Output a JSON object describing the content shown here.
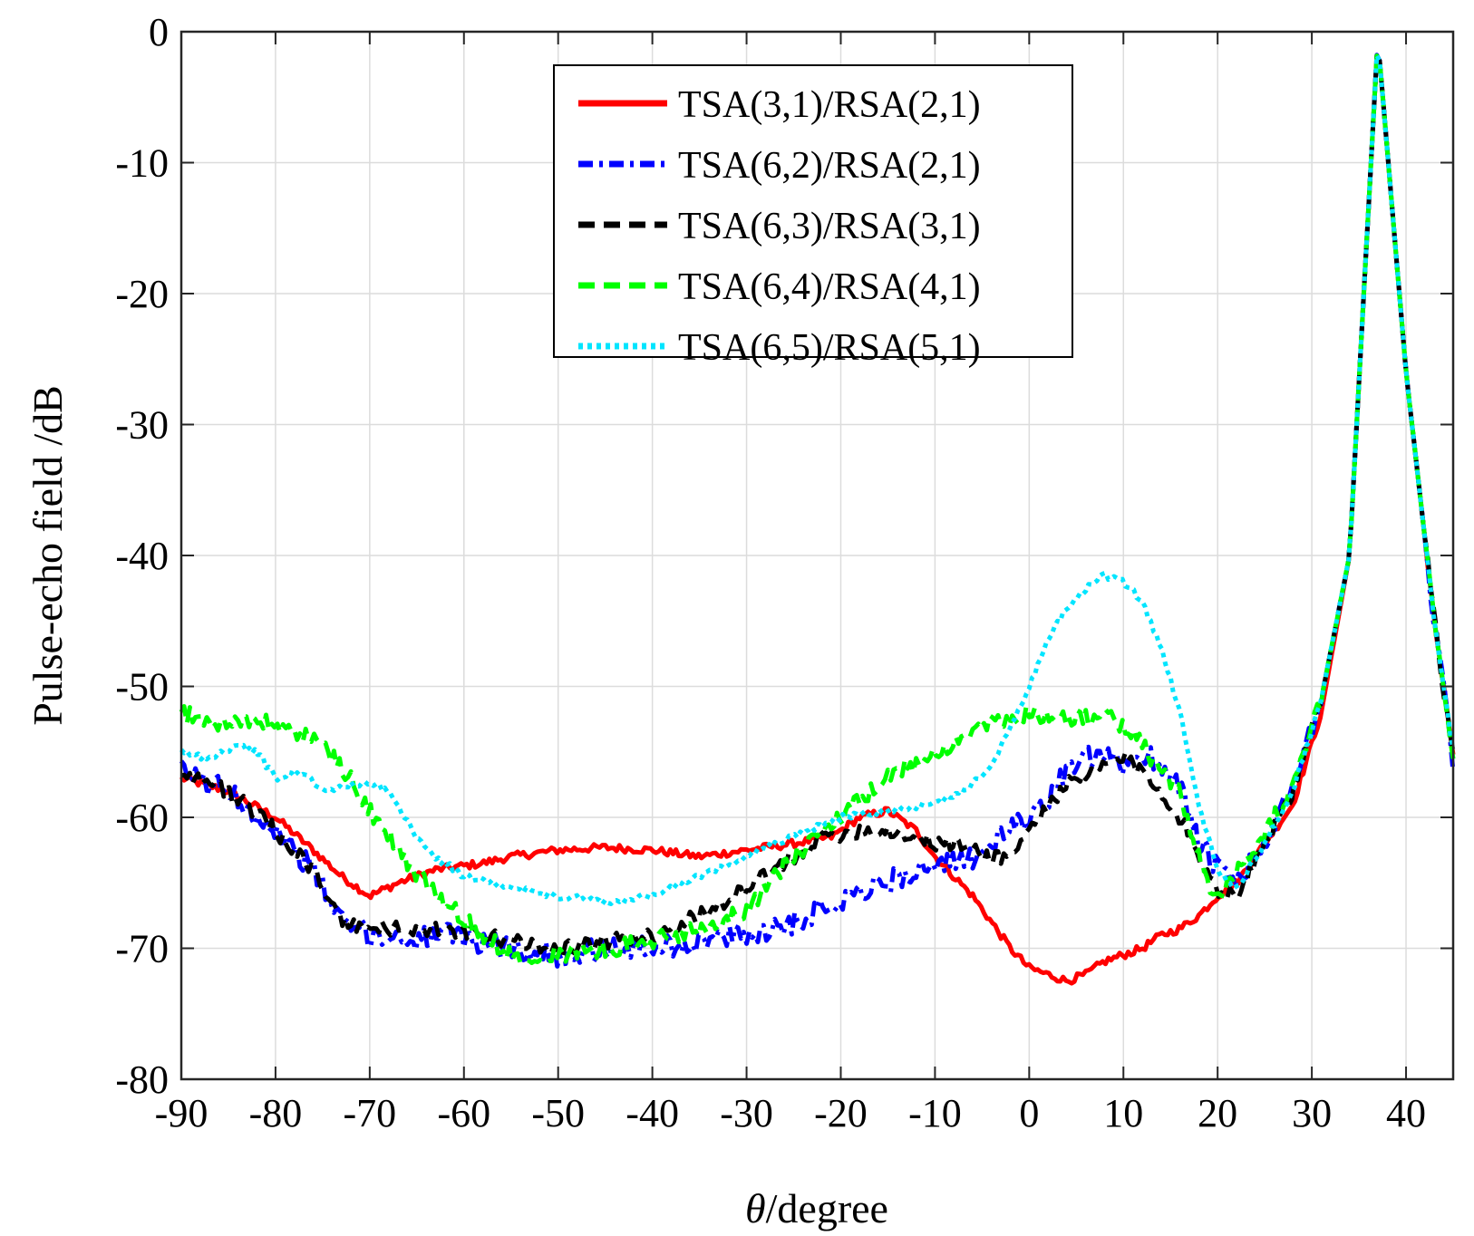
{
  "chart_data": {
    "type": "line",
    "title": "",
    "xlabel_symbol": "θ",
    "xlabel_suffix": "/degree",
    "ylabel": "Pulse-echo field /dB",
    "xlim": [
      -90,
      45
    ],
    "ylim": [
      -80,
      0
    ],
    "xticks": [
      -90,
      -80,
      -70,
      -60,
      -50,
      -40,
      -30,
      -20,
      -10,
      0,
      10,
      20,
      30,
      40
    ],
    "yticks": [
      0,
      -10,
      -20,
      -30,
      -40,
      -50,
      -60,
      -70,
      -80
    ],
    "grid": true,
    "legend_position": "top-center",
    "series": [
      {
        "name": "TSA(3,1)/RSA(2,1)",
        "color": "#ff0000",
        "style": "solid",
        "noise": 0.3,
        "x": [
          -90,
          -85,
          -80,
          -76,
          -73,
          -70,
          -67,
          -63,
          -58,
          -55,
          -50,
          -45,
          -40,
          -35,
          -30,
          -25,
          -21,
          -18,
          -15,
          -12,
          -10,
          -8,
          -6,
          -4,
          -2,
          0,
          2,
          4,
          6,
          8,
          10,
          12,
          14,
          16,
          18,
          20,
          22,
          25,
          28,
          31,
          34,
          37,
          40,
          43,
          45
        ],
        "y": [
          -57,
          -58,
          -60,
          -62.5,
          -64.5,
          -66,
          -65,
          -64,
          -63.5,
          -63,
          -62.5,
          -62.3,
          -62.5,
          -63,
          -62.5,
          -62,
          -61.5,
          -60,
          -59.5,
          -61,
          -63,
          -64.5,
          -66,
          -68,
          -70,
          -71.5,
          -72,
          -72.5,
          -72,
          -71,
          -70.5,
          -70,
          -69,
          -68.5,
          -67.5,
          -66,
          -65,
          -62,
          -59,
          -52,
          -40,
          -0.5,
          -26,
          -45,
          -55
        ]
      },
      {
        "name": "TSA(6,2)/RSA(2,1)",
        "color": "#0000ff",
        "style": "dashdot",
        "noise": 0.9,
        "x": [
          -90,
          -85,
          -80,
          -76,
          -73,
          -70,
          -66,
          -62,
          -58,
          -55,
          -50,
          -45,
          -40,
          -35,
          -30,
          -25,
          -22,
          -18,
          -15,
          -12,
          -10,
          -8,
          -6,
          -4,
          -2,
          0,
          2,
          4,
          6,
          8,
          10,
          12,
          14,
          16,
          18,
          20,
          22,
          25,
          28,
          31,
          34,
          37,
          40,
          43,
          45
        ],
        "y": [
          -56.5,
          -58,
          -61,
          -64,
          -68,
          -69,
          -69.3,
          -69,
          -69.5,
          -70,
          -70.5,
          -70,
          -70,
          -69.5,
          -69,
          -68,
          -67,
          -65.5,
          -65,
          -64,
          -64,
          -63.5,
          -63,
          -62,
          -61,
          -60,
          -58.5,
          -56.5,
          -55.5,
          -55.5,
          -56,
          -55,
          -56,
          -57.5,
          -62,
          -64,
          -65,
          -62,
          -58,
          -51,
          -40,
          -0.5,
          -26,
          -45,
          -56
        ]
      },
      {
        "name": "TSA(6,3)/RSA(3,1)",
        "color": "#000000",
        "style": "dashed",
        "noise": 0.6,
        "x": [
          -90,
          -85,
          -80,
          -76,
          -73,
          -70,
          -66,
          -62,
          -58,
          -55,
          -50,
          -45,
          -40,
          -35,
          -30,
          -25,
          -22,
          -18,
          -15,
          -12,
          -10,
          -8,
          -6,
          -4,
          -2,
          0,
          2,
          4,
          6,
          8,
          10,
          12,
          14,
          16,
          18,
          20,
          22,
          25,
          28,
          31,
          34,
          37,
          40,
          43,
          45
        ],
        "y": [
          -56.5,
          -58,
          -61,
          -64,
          -68,
          -68.5,
          -68.5,
          -68.7,
          -69,
          -69.5,
          -70,
          -69.5,
          -69,
          -67.5,
          -65.5,
          -63,
          -61.5,
          -61,
          -61,
          -61.5,
          -62,
          -62,
          -62.5,
          -63,
          -63,
          -61,
          -59,
          -57.5,
          -57,
          -56,
          -55.5,
          -56.5,
          -58,
          -60,
          -63,
          -65.5,
          -66,
          -62,
          -58,
          -51,
          -40,
          -0.5,
          -26,
          -45,
          -55.5
        ]
      },
      {
        "name": "TSA(6,4)/RSA(4,1)",
        "color": "#00ff00",
        "style": "dashed",
        "noise": 0.7,
        "x": [
          -90,
          -86,
          -84,
          -80,
          -76,
          -73,
          -70,
          -66,
          -62,
          -58,
          -55,
          -50,
          -45,
          -40,
          -35,
          -30,
          -25,
          -20,
          -15,
          -10,
          -6,
          -3,
          0,
          3,
          6,
          8,
          10,
          12,
          14,
          16,
          18,
          20,
          22,
          25,
          28,
          31,
          34,
          37,
          40,
          43,
          45
        ],
        "y": [
          -52,
          -53,
          -52.5,
          -53,
          -54,
          -56,
          -59.5,
          -63.5,
          -66.5,
          -69,
          -70.5,
          -70.5,
          -70,
          -69.5,
          -68.5,
          -67,
          -63,
          -60,
          -57,
          -55,
          -53.5,
          -52.5,
          -52,
          -52.5,
          -52.5,
          -52,
          -53,
          -54.5,
          -56.5,
          -58,
          -63,
          -66.5,
          -64,
          -61,
          -58,
          -51,
          -40,
          -0.5,
          -26,
          -45,
          -55
        ]
      },
      {
        "name": "TSA(6,5)/RSA(5,1)",
        "color": "#00e5ff",
        "style": "dotted",
        "noise": 0.25,
        "x": [
          -90,
          -87,
          -84,
          -82,
          -80,
          -77,
          -75,
          -72,
          -69,
          -67,
          -65,
          -63,
          -60,
          -57,
          -54,
          -50,
          -45,
          -40,
          -35,
          -30,
          -25,
          -20,
          -15,
          -10,
          -7,
          -4,
          -2,
          0,
          2,
          4,
          6,
          8,
          10,
          12,
          14,
          16,
          18,
          20,
          22,
          25,
          28,
          31,
          34,
          37,
          40,
          43,
          45
        ],
        "y": [
          -55,
          -55.5,
          -54.5,
          -55,
          -57,
          -56.5,
          -58,
          -57.5,
          -57.5,
          -59,
          -61.5,
          -63,
          -64.5,
          -65,
          -65.5,
          -66,
          -66.5,
          -66,
          -64.5,
          -63,
          -61.5,
          -60,
          -59.5,
          -59,
          -58,
          -56,
          -53,
          -50,
          -46.5,
          -44,
          -42.5,
          -41.5,
          -42,
          -43.5,
          -47,
          -52,
          -59,
          -64,
          -65.5,
          -62,
          -58,
          -51,
          -40,
          -0.5,
          -26,
          -45,
          -55
        ]
      }
    ]
  }
}
